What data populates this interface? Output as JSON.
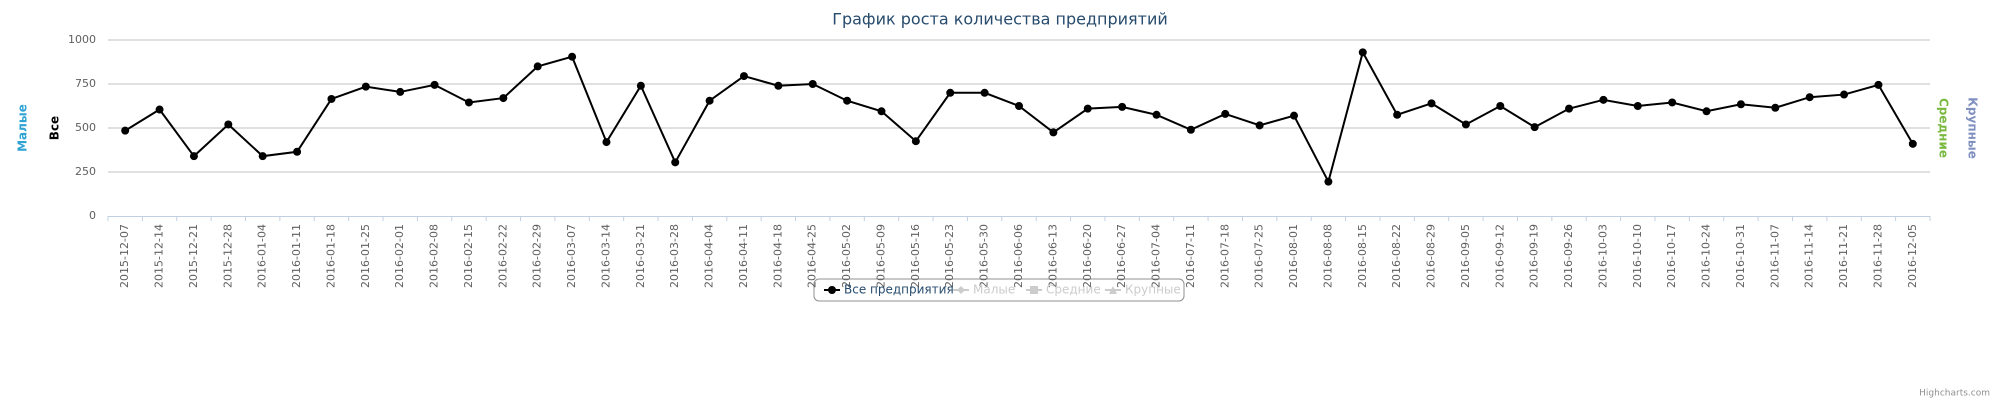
{
  "chart_data": {
    "type": "line",
    "title": "График роста количества предприятий",
    "x": [
      "2015-12-07",
      "2015-12-14",
      "2015-12-21",
      "2015-12-28",
      "2016-01-04",
      "2016-01-11",
      "2016-01-18",
      "2016-01-25",
      "2016-02-01",
      "2016-02-08",
      "2016-02-15",
      "2016-02-22",
      "2016-02-29",
      "2016-03-07",
      "2016-03-14",
      "2016-03-21",
      "2016-03-28",
      "2016-04-04",
      "2016-04-11",
      "2016-04-18",
      "2016-04-25",
      "2016-05-02",
      "2016-05-09",
      "2016-05-16",
      "2016-05-23",
      "2016-05-30",
      "2016-06-06",
      "2016-06-13",
      "2016-06-20",
      "2016-06-27",
      "2016-07-04",
      "2016-07-11",
      "2016-07-18",
      "2016-07-25",
      "2016-08-01",
      "2016-08-08",
      "2016-08-15",
      "2016-08-22",
      "2016-08-29",
      "2016-09-05",
      "2016-09-12",
      "2016-09-19",
      "2016-09-26",
      "2016-10-03",
      "2016-10-10",
      "2016-10-17",
      "2016-10-24",
      "2016-10-31",
      "2016-11-07",
      "2016-11-14",
      "2016-11-21",
      "2016-11-28",
      "2016-12-05"
    ],
    "series": [
      {
        "name": "Все предприятия",
        "color": "#000000",
        "visible": true,
        "values": [
          485,
          605,
          340,
          520,
          340,
          365,
          665,
          735,
          705,
          745,
          645,
          670,
          850,
          905,
          420,
          740,
          305,
          655,
          795,
          740,
          750,
          655,
          595,
          425,
          700,
          700,
          625,
          475,
          610,
          620,
          575,
          490,
          580,
          515,
          570,
          195,
          930,
          575,
          640,
          520,
          625,
          505,
          610,
          660,
          625,
          645,
          595,
          635,
          615,
          675,
          690,
          745,
          410
        ]
      },
      {
        "name": "Малые",
        "color": "#2fa4d4",
        "visible": false
      },
      {
        "name": "Средние",
        "color": "#7ab940",
        "visible": false
      },
      {
        "name": "Крупные",
        "color": "#8090c0",
        "visible": false
      }
    ],
    "y_axis_titles": [
      {
        "text": "Малые",
        "color": "#2fa4d4",
        "side": "left"
      },
      {
        "text": "Все",
        "color": "#000000",
        "side": "left"
      },
      {
        "text": "Средние",
        "color": "#7ab940",
        "side": "right"
      },
      {
        "text": "Крупные",
        "color": "#8090c0",
        "side": "right"
      }
    ],
    "ylim": [
      0,
      1000
    ],
    "yticks": [
      0,
      250,
      500,
      750,
      1000
    ],
    "grid": true,
    "legend": "bottom",
    "credits": "Highcharts.com"
  }
}
